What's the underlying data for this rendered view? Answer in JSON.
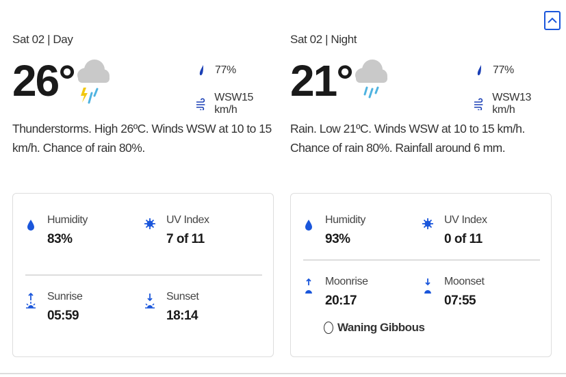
{
  "header": {
    "collapse_icon": "chevron-up-icon",
    "accent": "#1a56db"
  },
  "day": {
    "date": "Sat 02 | Day",
    "temp": "26°",
    "condition_icon": "thunderstorm-rain-icon",
    "precip": "77%",
    "wind": "WSW15 km/h",
    "description": "Thunderstorms. High 26ºC. Winds WSW at 10 to 15 km/h. Chance of rain 80%.",
    "humidity": {
      "label": "Humidity",
      "value": "83%"
    },
    "uv": {
      "label": "UV Index",
      "value": "7 of 11"
    },
    "rise": {
      "label": "Sunrise",
      "value": "05:59"
    },
    "set": {
      "label": "Sunset",
      "value": "18:14"
    }
  },
  "night": {
    "date": "Sat 02 | Night",
    "temp": "21°",
    "condition_icon": "rain-icon",
    "precip": "77%",
    "wind": "WSW13 km/h",
    "description": "Rain. Low 21ºC. Winds WSW at 10 to 15 km/h. Chance of rain 80%. Rainfall around 6 mm.",
    "humidity": {
      "label": "Humidity",
      "value": "93%"
    },
    "uv": {
      "label": "UV Index",
      "value": "0 of 11"
    },
    "rise": {
      "label": "Moonrise",
      "value": "20:17"
    },
    "set": {
      "label": "Moonset",
      "value": "07:55"
    },
    "moon_phase": "Waning Gibbous"
  }
}
